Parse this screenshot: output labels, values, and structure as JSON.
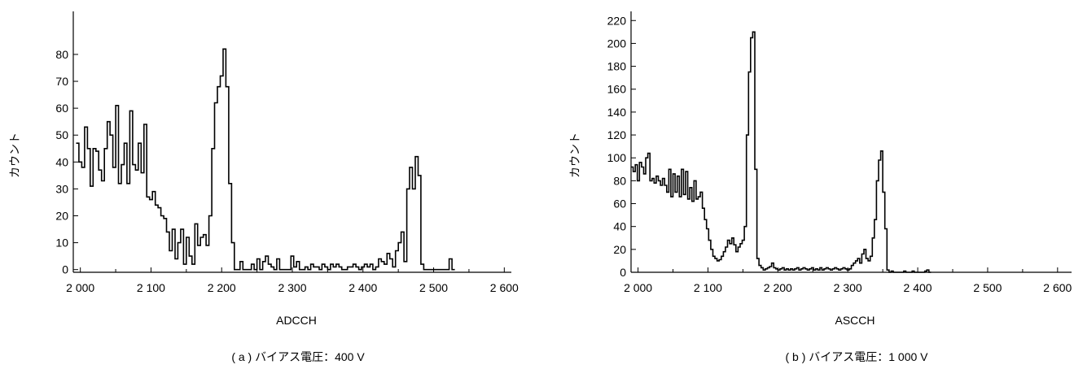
{
  "chart_data": [
    {
      "type": "step",
      "panel": "a",
      "caption": "( a ) バイアス電圧：400 V",
      "xlabel": "ADCCH",
      "ylabel": "カウント",
      "xlim": [
        1990,
        2610
      ],
      "ylim": [
        -1,
        96
      ],
      "xticks": [
        2000,
        2100,
        2200,
        2300,
        2400,
        2500,
        2600
      ],
      "xtick_labels": [
        "2 000",
        "2 100",
        "2 200",
        "2 300",
        "2 400",
        "2 500",
        "2 600"
      ],
      "yticks": [
        0,
        10,
        20,
        30,
        40,
        50,
        60,
        70,
        80
      ],
      "ytick_labels": [
        "0",
        "10",
        "20",
        "30",
        "40",
        "50",
        "60",
        "70",
        "80"
      ],
      "bin_width": 4,
      "x_start": 1994,
      "values": [
        47,
        40,
        38,
        53,
        45,
        31,
        45,
        44,
        37,
        33,
        45,
        55,
        50,
        38,
        61,
        32,
        39,
        47,
        32,
        59,
        39,
        37,
        47,
        36,
        54,
        27,
        26,
        29,
        24,
        23,
        20,
        19,
        14,
        7,
        15,
        4,
        10,
        15,
        2,
        12,
        5,
        2,
        17,
        9,
        12,
        13,
        9,
        20,
        45,
        62,
        68,
        72,
        82,
        68,
        32,
        10,
        0,
        0,
        3,
        0,
        0,
        0,
        2,
        0,
        4,
        0,
        3,
        5,
        2,
        1,
        0,
        4,
        0,
        0,
        0,
        0,
        5,
        1,
        3,
        0,
        0,
        1,
        0,
        2,
        1,
        1,
        0,
        2,
        1,
        0,
        2,
        1,
        2,
        1,
        0,
        0,
        1,
        1,
        2,
        1,
        0,
        1,
        2,
        1,
        2,
        0,
        1,
        4,
        3,
        2,
        6,
        4,
        1,
        7,
        10,
        14,
        3,
        30,
        38,
        30,
        42,
        35,
        2,
        0,
        0,
        0,
        0,
        0,
        0,
        0,
        0,
        0,
        4,
        0
      ]
    },
    {
      "type": "step",
      "panel": "b",
      "caption": "( b ) バイアス電圧：1 000 V",
      "xlabel": "ASCCH",
      "ylabel": "カウント",
      "xlim": [
        1990,
        2620
      ],
      "ylim": [
        0,
        228
      ],
      "xticks": [
        2000,
        2100,
        2200,
        2300,
        2400,
        2500,
        2600
      ],
      "xtick_labels": [
        "2 000",
        "2 100",
        "2 200",
        "2 300",
        "2 400",
        "2 500",
        "2 600"
      ],
      "yticks": [
        0,
        20,
        40,
        60,
        80,
        100,
        120,
        140,
        160,
        180,
        200,
        220
      ],
      "ytick_labels": [
        "0",
        "20",
        "40",
        "60",
        "80",
        "100",
        "120",
        "140",
        "160",
        "180",
        "200",
        "220"
      ],
      "bin_width": 3,
      "x_start": 1990,
      "values": [
        92,
        88,
        94,
        80,
        96,
        92,
        86,
        100,
        104,
        80,
        82,
        78,
        84,
        80,
        76,
        82,
        76,
        70,
        90,
        66,
        86,
        70,
        84,
        66,
        90,
        68,
        88,
        64,
        74,
        62,
        80,
        64,
        66,
        70,
        56,
        46,
        38,
        28,
        20,
        14,
        12,
        10,
        11,
        14,
        18,
        22,
        28,
        25,
        30,
        24,
        18,
        22,
        25,
        28,
        40,
        120,
        175,
        205,
        210,
        90,
        12,
        6,
        4,
        2,
        3,
        4,
        5,
        8,
        4,
        3,
        2,
        3,
        4,
        2,
        3,
        2,
        3,
        2,
        3,
        4,
        2,
        3,
        4,
        3,
        2,
        3,
        4,
        2,
        3,
        2,
        4,
        2,
        3,
        4,
        3,
        2,
        3,
        4,
        3,
        2,
        3,
        4,
        3,
        2,
        3,
        6,
        8,
        10,
        12,
        8,
        16,
        20,
        12,
        10,
        14,
        30,
        46,
        80,
        98,
        106,
        70,
        38,
        2,
        0,
        1,
        0,
        0,
        0,
        0,
        0,
        1,
        0,
        0,
        0,
        1,
        0,
        0,
        0,
        0,
        0,
        1,
        2,
        0
      ]
    }
  ]
}
